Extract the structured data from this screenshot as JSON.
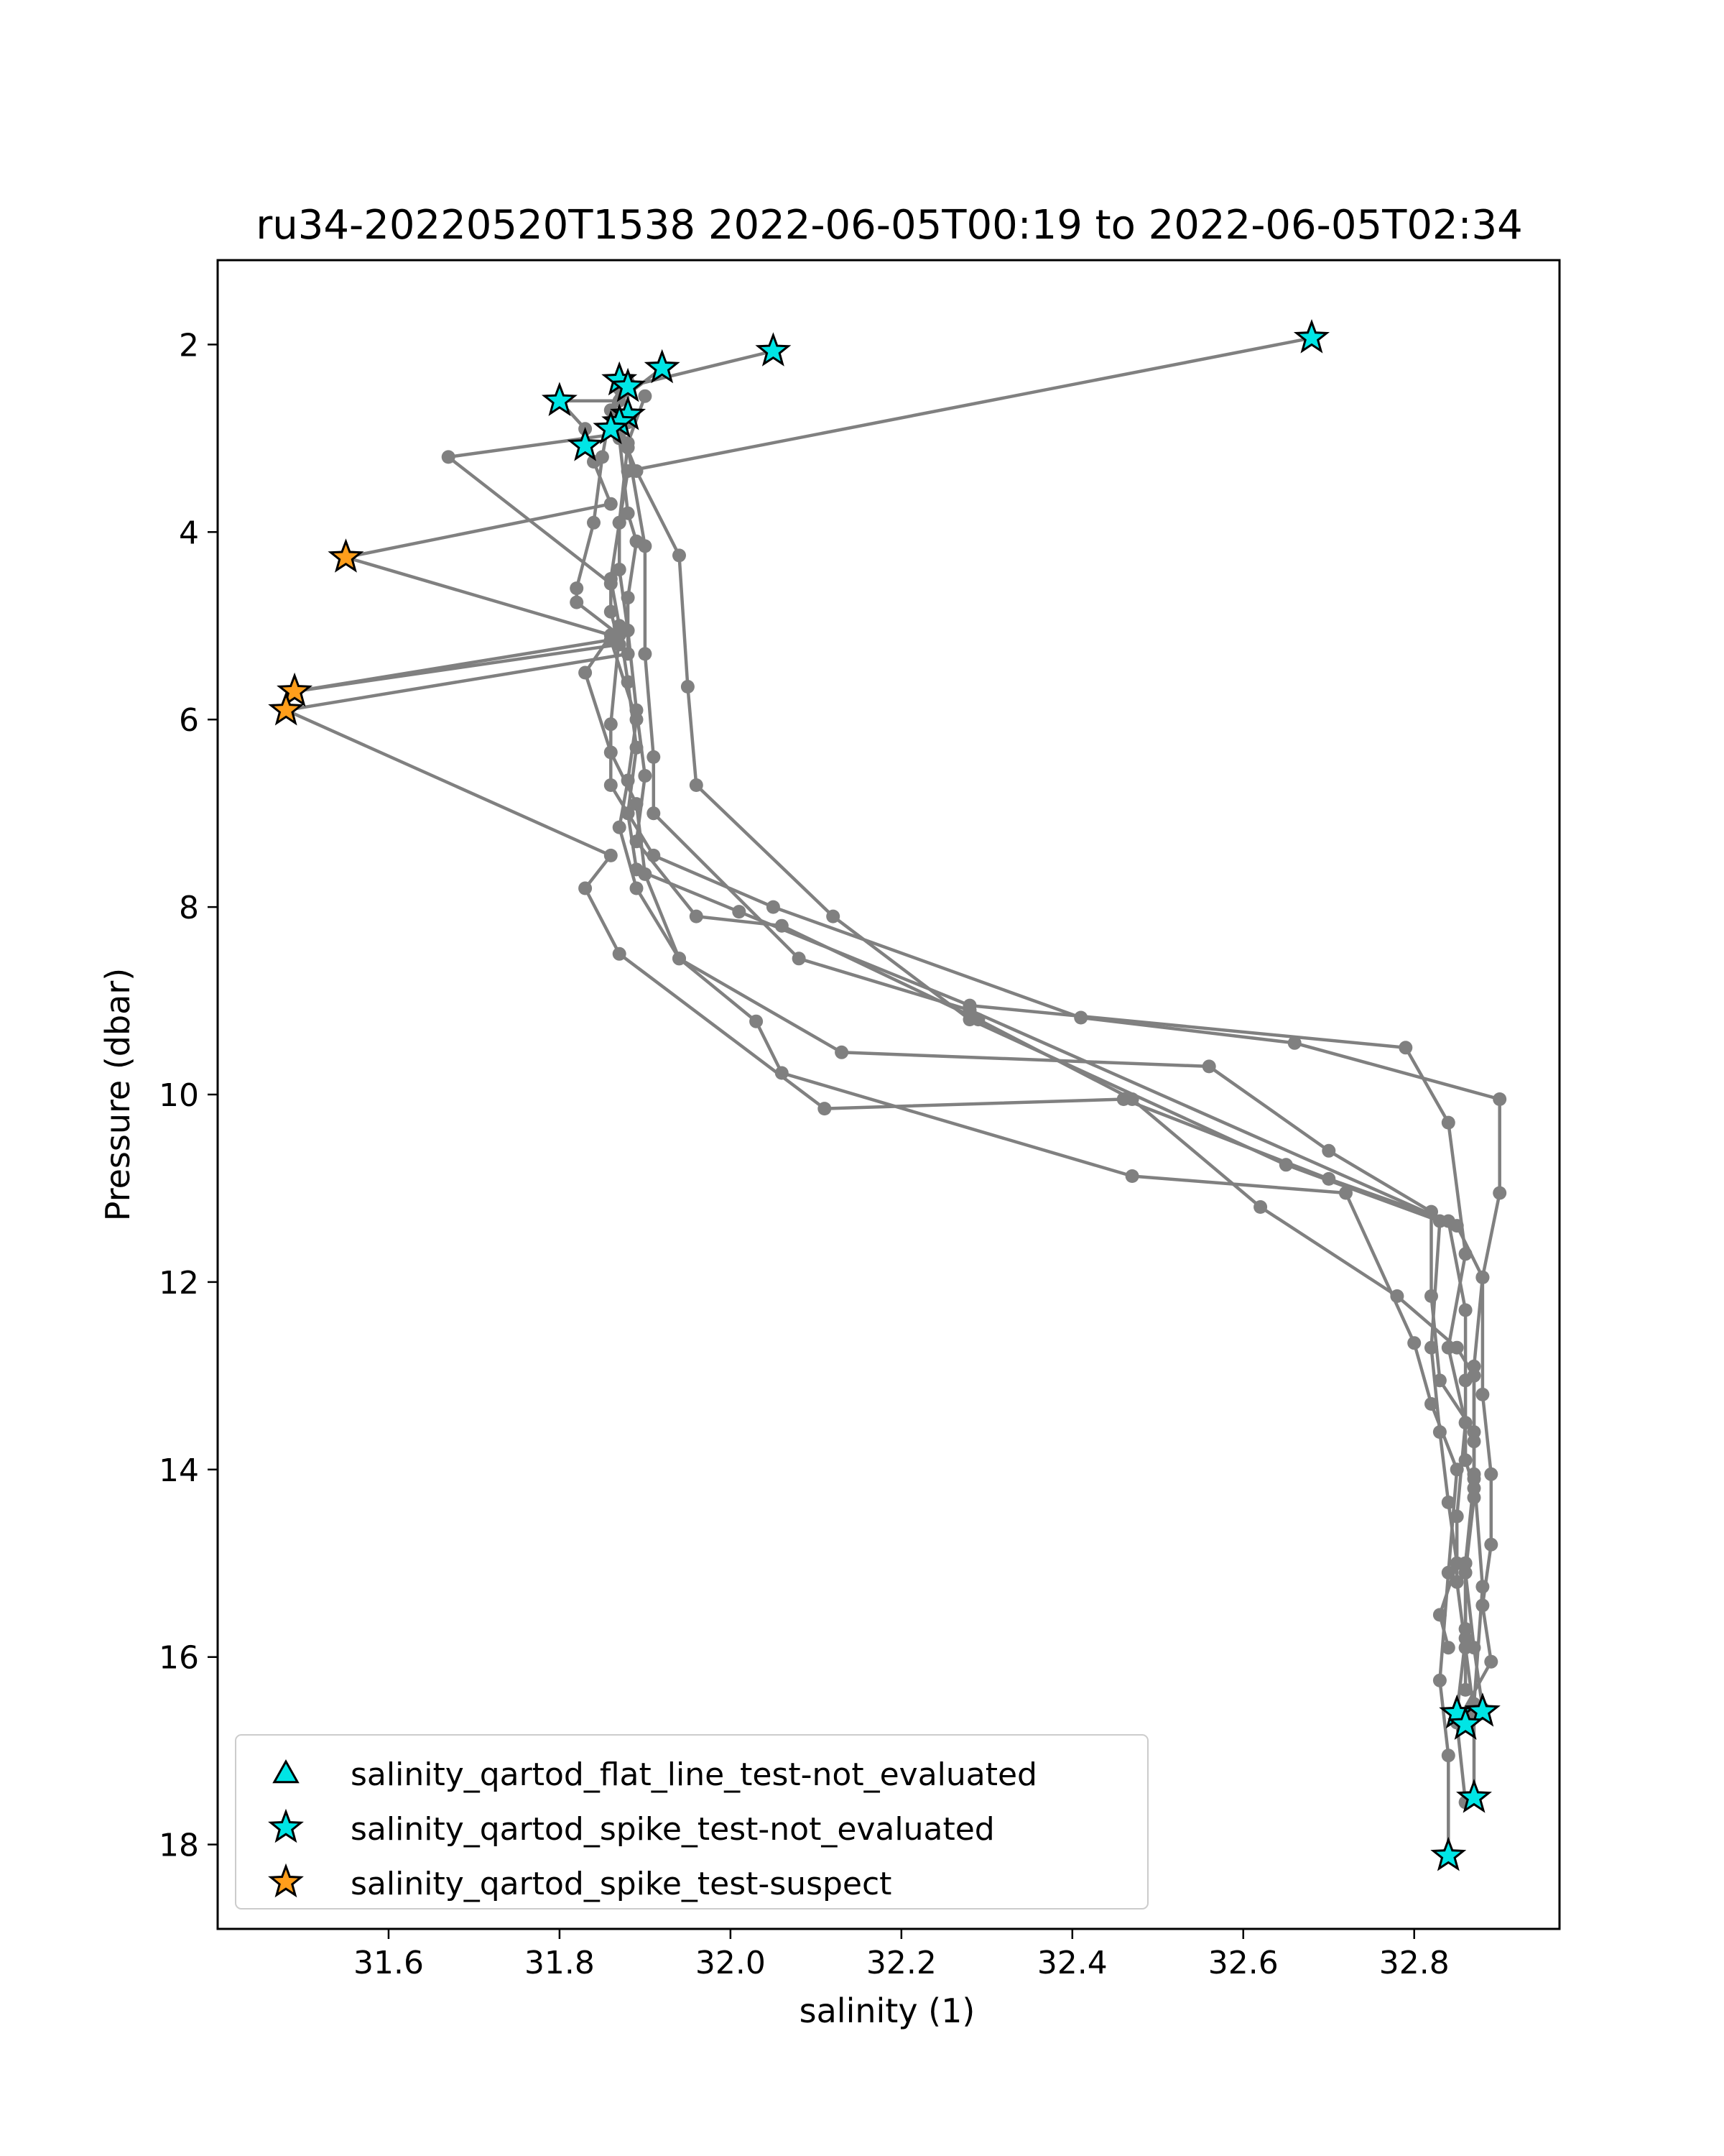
{
  "chart_data": {
    "type": "scatter",
    "title": "ru34-20220520T1538 2022-06-05T00:19 to 2022-06-05T02:34",
    "xlabel": "salinity (1)",
    "ylabel": "Pressure (dbar)",
    "xlim": [
      31.4,
      32.97
    ],
    "ylim": [
      18.9,
      1.1
    ],
    "y_inverted": true,
    "xticks": [
      "31.6",
      "31.8",
      "32.0",
      "32.2",
      "32.4",
      "32.6",
      "32.8"
    ],
    "yticks": [
      "2",
      "4",
      "6",
      "8",
      "10",
      "12",
      "14",
      "16",
      "18"
    ],
    "grid": false,
    "legend_position": "lower-left",
    "colors": {
      "profile_line": "#808080",
      "not_evaluated": "#00e5e5",
      "suspect": "#ff9e1b",
      "marker_edge": "#000000"
    },
    "profiles": [
      {
        "name": "",
        "points": [
          [
            32.68,
            1.93
          ],
          [
            31.88,
            3.35
          ],
          [
            31.87,
            3.9
          ],
          [
            31.86,
            4.5
          ],
          [
            31.87,
            5.0
          ],
          [
            31.88,
            5.6
          ],
          [
            31.89,
            6.3
          ],
          [
            31.88,
            7.0
          ],
          [
            31.89,
            7.6
          ],
          [
            32.01,
            8.05
          ],
          [
            32.28,
            9.05
          ],
          [
            32.79,
            9.5
          ],
          [
            32.84,
            10.3
          ],
          [
            32.86,
            11.7
          ],
          [
            32.84,
            12.7
          ],
          [
            32.86,
            13.5
          ],
          [
            32.85,
            14.5
          ],
          [
            32.85,
            15.2
          ],
          [
            32.86,
            15.9
          ],
          [
            32.87,
            16.6
          ],
          [
            32.87,
            17.5
          ]
        ]
      },
      {
        "name": "",
        "points": [
          [
            32.05,
            2.07
          ],
          [
            31.87,
            2.47
          ],
          [
            31.86,
            2.7
          ],
          [
            31.85,
            3.2
          ],
          [
            31.84,
            3.9
          ],
          [
            31.82,
            4.6
          ],
          [
            31.82,
            4.75
          ],
          [
            31.87,
            5.1
          ],
          [
            31.86,
            6.05
          ],
          [
            31.86,
            6.7
          ],
          [
            31.91,
            7.45
          ],
          [
            32.05,
            8.0
          ],
          [
            32.41,
            9.18
          ],
          [
            32.66,
            9.45
          ],
          [
            32.9,
            10.05
          ],
          [
            32.9,
            11.05
          ],
          [
            32.88,
            11.95
          ],
          [
            32.87,
            12.9
          ],
          [
            32.87,
            13.7
          ],
          [
            32.87,
            14.1
          ],
          [
            32.86,
            15.0
          ],
          [
            32.86,
            15.8
          ],
          [
            32.85,
            16.6
          ]
        ]
      },
      {
        "name": "",
        "points": [
          [
            31.92,
            2.25
          ],
          [
            31.87,
            2.6
          ],
          [
            31.8,
            2.6
          ],
          [
            31.83,
            2.9
          ],
          [
            31.84,
            3.25
          ],
          [
            31.86,
            3.7
          ],
          [
            31.55,
            4.27
          ],
          [
            31.86,
            5.1
          ],
          [
            31.83,
            5.5
          ],
          [
            31.86,
            6.35
          ],
          [
            31.89,
            6.9
          ],
          [
            31.9,
            7.65
          ],
          [
            31.94,
            8.55
          ],
          [
            32.03,
            9.22
          ],
          [
            32.06,
            9.77
          ],
          [
            32.47,
            10.87
          ],
          [
            32.72,
            11.05
          ],
          [
            32.8,
            12.65
          ],
          [
            32.82,
            13.3
          ],
          [
            32.85,
            14.0
          ],
          [
            32.84,
            15.1
          ],
          [
            32.83,
            16.25
          ],
          [
            32.84,
            17.05
          ],
          [
            32.84,
            18.1
          ]
        ]
      },
      {
        "name": "",
        "points": [
          [
            31.88,
            2.4
          ],
          [
            31.88,
            2.75
          ],
          [
            31.87,
            2.95
          ],
          [
            31.67,
            3.2
          ],
          [
            31.86,
            4.55
          ],
          [
            31.86,
            4.85
          ],
          [
            31.87,
            5.2
          ],
          [
            31.49,
            5.7
          ],
          [
            31.86,
            5.15
          ],
          [
            31.89,
            6.0
          ],
          [
            31.88,
            6.65
          ],
          [
            31.87,
            7.15
          ],
          [
            31.89,
            7.8
          ],
          [
            31.94,
            8.55
          ],
          [
            32.13,
            9.55
          ],
          [
            32.56,
            9.7
          ],
          [
            32.7,
            10.6
          ],
          [
            32.82,
            11.25
          ],
          [
            32.82,
            12.15
          ],
          [
            32.83,
            13.05
          ],
          [
            32.87,
            13.6
          ],
          [
            32.87,
            14.3
          ],
          [
            32.86,
            15.1
          ],
          [
            32.87,
            15.9
          ],
          [
            32.88,
            16.55
          ]
        ]
      },
      {
        "name": "",
        "points": [
          [
            31.88,
            2.83
          ],
          [
            31.87,
            3.0
          ],
          [
            31.88,
            3.8
          ],
          [
            31.89,
            4.1
          ],
          [
            31.88,
            4.7
          ],
          [
            31.88,
            5.3
          ],
          [
            31.48,
            5.9
          ],
          [
            31.86,
            7.45
          ],
          [
            31.83,
            7.8
          ],
          [
            31.87,
            8.5
          ],
          [
            32.11,
            10.15
          ],
          [
            32.46,
            10.05
          ],
          [
            32.7,
            10.9
          ],
          [
            32.84,
            11.35
          ],
          [
            32.86,
            12.3
          ],
          [
            32.86,
            13.05
          ],
          [
            32.86,
            13.9
          ],
          [
            32.87,
            14.2
          ],
          [
            32.86,
            15.0
          ],
          [
            32.86,
            15.7
          ],
          [
            32.86,
            16.35
          ]
        ]
      },
      {
        "name": "",
        "points": [
          [
            31.87,
            2.9
          ],
          [
            31.89,
            3.35
          ],
          [
            31.94,
            4.25
          ],
          [
            31.95,
            5.65
          ],
          [
            31.96,
            6.7
          ],
          [
            32.12,
            8.1
          ],
          [
            32.28,
            9.2
          ],
          [
            32.65,
            10.75
          ],
          [
            32.83,
            11.35
          ],
          [
            32.82,
            12.7
          ],
          [
            32.83,
            13.6
          ],
          [
            32.84,
            14.35
          ],
          [
            32.85,
            15.0
          ],
          [
            32.83,
            15.55
          ],
          [
            32.84,
            15.9
          ]
        ]
      },
      {
        "name": "",
        "points": [
          [
            31.87,
            2.85
          ],
          [
            31.88,
            3.1
          ],
          [
            31.9,
            4.15
          ],
          [
            31.9,
            5.3
          ],
          [
            31.91,
            6.4
          ],
          [
            31.91,
            7.0
          ],
          [
            32.08,
            8.55
          ],
          [
            32.28,
            9.1
          ],
          [
            32.85,
            11.4
          ],
          [
            32.88,
            11.95
          ],
          [
            32.88,
            13.2
          ],
          [
            32.89,
            14.05
          ],
          [
            32.89,
            14.8
          ],
          [
            32.88,
            15.45
          ],
          [
            32.89,
            16.05
          ],
          [
            32.85,
            16.7
          ],
          [
            32.86,
            17.55
          ]
        ]
      },
      {
        "name": "",
        "points": [
          [
            31.9,
            2.55
          ],
          [
            31.88,
            3.05
          ],
          [
            31.87,
            3.9
          ],
          [
            31.87,
            4.4
          ],
          [
            31.88,
            5.05
          ],
          [
            31.89,
            5.9
          ],
          [
            31.9,
            6.6
          ],
          [
            31.89,
            7.3
          ],
          [
            31.96,
            8.1
          ],
          [
            32.06,
            8.2
          ],
          [
            32.29,
            9.2
          ],
          [
            32.47,
            10.05
          ],
          [
            32.62,
            11.2
          ],
          [
            32.78,
            12.15
          ],
          [
            32.85,
            12.7
          ],
          [
            32.87,
            13.0
          ],
          [
            32.87,
            14.05
          ],
          [
            32.88,
            15.25
          ],
          [
            32.87,
            16.5
          ],
          [
            32.88,
            16.6
          ]
        ]
      }
    ],
    "flags": {
      "not_evaluated_points": [
        [
          32.68,
          1.93
        ],
        [
          32.05,
          2.07
        ],
        [
          31.92,
          2.25
        ],
        [
          31.87,
          2.38
        ],
        [
          31.88,
          2.45
        ],
        [
          31.8,
          2.6
        ],
        [
          31.88,
          2.75
        ],
        [
          31.87,
          2.83
        ],
        [
          31.86,
          2.9
        ],
        [
          31.83,
          3.08
        ],
        [
          32.85,
          16.6
        ],
        [
          32.88,
          16.58
        ],
        [
          32.86,
          16.72
        ],
        [
          32.87,
          17.5
        ],
        [
          32.84,
          18.12
        ]
      ],
      "suspect_points": [
        [
          31.55,
          4.27
        ],
        [
          31.49,
          5.7
        ],
        [
          31.48,
          5.9
        ]
      ]
    },
    "legend": [
      {
        "label": "salinity_qartod_flat_line_test-not_evaluated",
        "marker": "triangle",
        "color": "#00e5e5"
      },
      {
        "label": "salinity_qartod_spike_test-not_evaluated",
        "marker": "star",
        "color": "#00e5e5"
      },
      {
        "label": "salinity_qartod_spike_test-suspect",
        "marker": "star",
        "color": "#ff9e1b"
      }
    ]
  }
}
